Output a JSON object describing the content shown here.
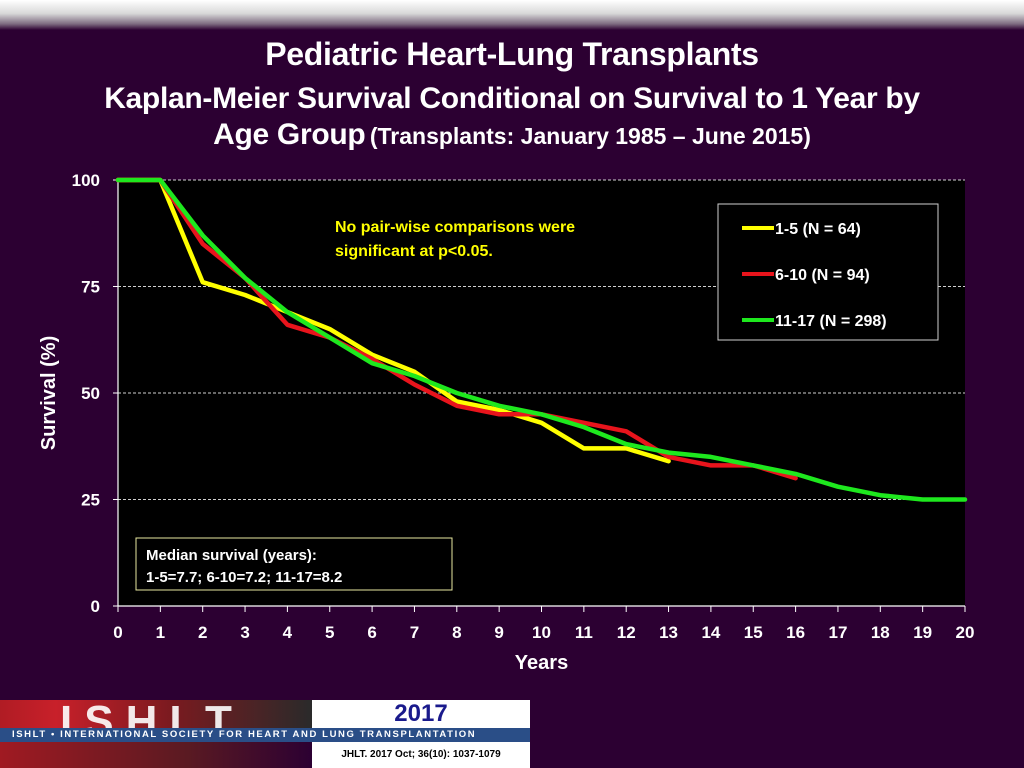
{
  "title": {
    "line1": "Pediatric Heart-Lung Transplants",
    "line2": "Kaplan-Meier Survival Conditional on Survival to 1 Year by",
    "line3": "Age Group",
    "line3_sub": "(Transplants: January 1985 – June 2015)"
  },
  "chart_data": {
    "type": "line",
    "xlabel": "Years",
    "ylabel": "Survival (%)",
    "xlim": [
      0,
      20
    ],
    "ylim": [
      0,
      100
    ],
    "x_ticks": [
      "0",
      "1",
      "2",
      "3",
      "4",
      "5",
      "6",
      "7",
      "8",
      "9",
      "10",
      "11",
      "12",
      "13",
      "14",
      "15",
      "16",
      "17",
      "18",
      "19",
      "20"
    ],
    "y_ticks": [
      "0",
      "25",
      "50",
      "75",
      "100"
    ],
    "grid": "horizontal dashed",
    "legend_position": "top-right",
    "annotation": [
      "No pair-wise comparisons were",
      "significant at p<0.05."
    ],
    "median_box": [
      "Median survival (years):",
      "1-5=7.7; 6-10=7.2; 11-17=8.2"
    ],
    "series": [
      {
        "name": "1-5 (N = 64)",
        "color": "#ffff00",
        "x": [
          0,
          1,
          2,
          3,
          4,
          5,
          6,
          7,
          8,
          9,
          10,
          11,
          12,
          13
        ],
        "y": [
          100,
          100,
          76,
          73,
          69,
          65,
          59,
          55,
          48,
          46,
          43,
          37,
          37,
          34
        ]
      },
      {
        "name": "6-10 (N = 94)",
        "color": "#e8141c",
        "x": [
          0,
          1,
          2,
          3,
          4,
          5,
          6,
          7,
          8,
          9,
          10,
          11,
          12,
          13,
          14,
          15,
          16
        ],
        "y": [
          100,
          100,
          85,
          77,
          66,
          63,
          58,
          52,
          47,
          45,
          45,
          43,
          41,
          35,
          33,
          33,
          30
        ]
      },
      {
        "name": "11-17 (N = 298)",
        "color": "#1ee81e",
        "x": [
          0,
          1,
          2,
          3,
          4,
          5,
          6,
          7,
          8,
          9,
          10,
          11,
          12,
          13,
          14,
          15,
          16,
          17,
          18,
          19,
          20
        ],
        "y": [
          100,
          100,
          87,
          77,
          69,
          63,
          57,
          54,
          50,
          47,
          45,
          42,
          38,
          36,
          35,
          33,
          31,
          28,
          26,
          25,
          25
        ]
      }
    ]
  },
  "footer": {
    "logo_text": "ISHLT",
    "year": "2017",
    "society": "ISHLT • INTERNATIONAL SOCIETY FOR HEART AND LUNG TRANSPLANTATION",
    "citation": "JHLT. 2017 Oct; 36(10): 1037-1079"
  },
  "colors": {
    "background": "#2c0032",
    "plot_background": "#000000",
    "annotation": "#ffff00"
  }
}
